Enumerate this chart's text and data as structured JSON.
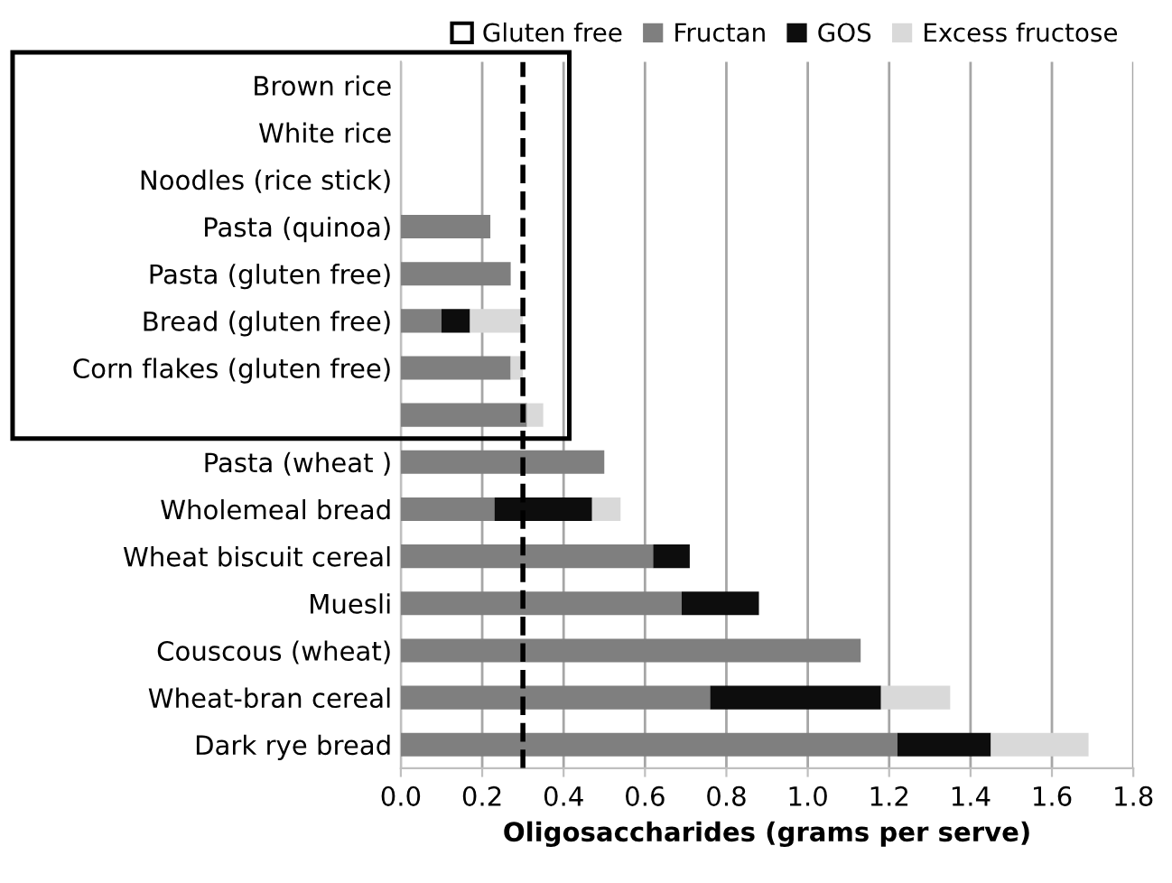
{
  "chart_data": {
    "type": "bar",
    "orientation": "horizontal",
    "stacked": true,
    "xlabel": "Oligosaccharides (grams per serve)",
    "categories": [
      "Brown rice",
      "White rice",
      "Noodles (rice stick)",
      "Pasta (quinoa)",
      "Pasta (gluten free)",
      "Bread (gluten free)",
      "Corn flakes (gluten free)",
      null,
      "Pasta (wheat )",
      "Wholemeal bread",
      "Wheat biscuit cereal",
      "Muesli",
      "Couscous (wheat)",
      "Wheat-bran cereal",
      "Dark rye bread"
    ],
    "series": [
      {
        "name": "Fructan",
        "color": "#7f7f7f",
        "values": [
          null,
          null,
          null,
          0.22,
          0.27,
          0.1,
          0.27,
          0.31,
          0.5,
          0.23,
          0.62,
          0.69,
          1.13,
          0.76,
          1.22
        ]
      },
      {
        "name": "GOS",
        "color": "#0d0d0d",
        "values": [
          null,
          null,
          null,
          null,
          null,
          0.07,
          null,
          null,
          null,
          0.24,
          0.09,
          0.19,
          null,
          0.42,
          0.23
        ]
      },
      {
        "name": "Excess fructose",
        "color": "#d9d9d9",
        "values": [
          null,
          null,
          null,
          null,
          null,
          0.13,
          0.03,
          0.04,
          null,
          0.07,
          null,
          null,
          null,
          0.17,
          0.24
        ]
      }
    ],
    "xlim": [
      0,
      1.8
    ],
    "xticks": [
      {
        "value": 0,
        "label": "0.0"
      },
      {
        "value": 0.2,
        "label": "0.2"
      },
      {
        "value": 0.4,
        "label": "0.4"
      },
      {
        "value": 0.6,
        "label": "0.6"
      },
      {
        "value": 0.8,
        "label": "0.8"
      },
      {
        "value": 1.0,
        "label": "1.0"
      },
      {
        "value": 1.2,
        "label": "1.2"
      },
      {
        "value": 1.4,
        "label": "1.4"
      },
      {
        "value": 1.6,
        "label": "1.6"
      },
      {
        "value": 1.8,
        "label": "1.8"
      }
    ],
    "ref_lines": [
      {
        "axis": "x",
        "value": 0.3,
        "color": "#000000",
        "line_style": "dashed"
      }
    ],
    "annotations": [
      "Gluten free"
    ],
    "grid": "x",
    "legend": "top"
  }
}
